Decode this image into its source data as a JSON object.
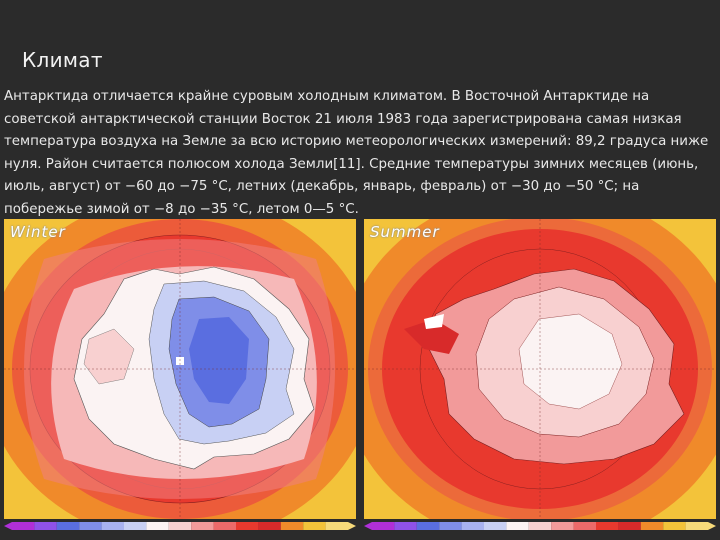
{
  "slide": {
    "title": "Климат",
    "body": "Антарктида отличается крайне суровым холодным климатом. В Восточной Антарктиде на советской антарктической станции Восток 21 июля 1983 года зарегистрирована самая низкая температура воздуха на Земле за всю историю метеорологических измерений: 89,2 градуса ниже нуля. Район считается полюсом холода Земли[11]. Средние температуры зимних месяцев (июнь, июль, август) от −60 до −75 °C, летних (декабрь, январь, февраль) от −30 до −50 °C; на побережье зимой от −8 до −35 °C, летом 0—5 °C."
  },
  "maps": {
    "winter": {
      "label": "Winter"
    },
    "summer": {
      "label": "Summer"
    }
  },
  "colors": {
    "ocean_outer": "#f3c33a",
    "orange": "#f08a2a",
    "red": "#e8392e",
    "deep_red": "#d82a2a",
    "pink": "#f29a9a",
    "light_pink": "#f8d0d0",
    "white": "#fbf3f3",
    "light_blue": "#c8d0f4",
    "blue": "#7f8ee8",
    "deep_blue": "#5a6ee0"
  },
  "colorbar": [
    "#b02fd8",
    "#8f52e8",
    "#5a6ee0",
    "#7f8ee8",
    "#a8b2f0",
    "#c8d0f4",
    "#fbf3f3",
    "#f8d0d0",
    "#f29a9a",
    "#ec6a6a",
    "#e8392e",
    "#d82a2a",
    "#f08a2a",
    "#f3c33a",
    "#f6da7a"
  ]
}
